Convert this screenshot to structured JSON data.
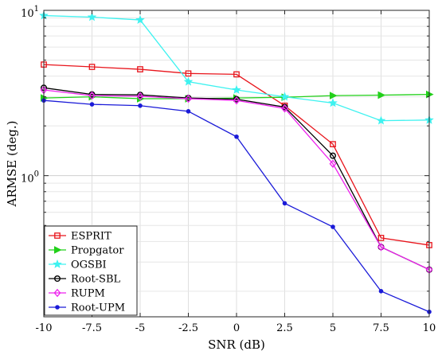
{
  "chart_data": {
    "type": "line",
    "xlabel": "SNR (dB)",
    "ylabel": "ARMSE (deg.)",
    "yscale": "log",
    "xlim": [
      -10,
      10
    ],
    "ylim": [
      0.14,
      10
    ],
    "grid": true,
    "legend_position": "bottom-left",
    "x_ticks": [
      -10,
      -7.5,
      -5,
      -2.5,
      0,
      2.5,
      5,
      7.5,
      10
    ],
    "x_tick_labels": [
      "-10",
      "-7.5",
      "-5",
      "-2.5",
      "0",
      "2.5",
      "5",
      "7.5",
      "10"
    ],
    "y_major_ticks": [
      {
        "value": 1,
        "base": "10",
        "exp": "0"
      },
      {
        "value": 10,
        "base": "10",
        "exp": "1"
      }
    ],
    "y_minor_ticks": [
      0.2,
      0.3,
      0.4,
      0.5,
      0.6,
      0.7,
      0.8,
      0.9,
      2,
      3,
      4,
      5,
      6,
      7,
      8,
      9
    ],
    "x": [
      -10,
      -7.5,
      -5,
      -2.5,
      0,
      2.5,
      5,
      7.5,
      10
    ],
    "series": [
      {
        "name": "ESPRIT",
        "color": "#e8141b",
        "marker": "square",
        "values": [
          4.7,
          4.55,
          4.4,
          4.15,
          4.1,
          2.65,
          1.55,
          0.42,
          0.38
        ]
      },
      {
        "name": "Propgator",
        "color": "#22d01a",
        "marker": "triangle-right",
        "values": [
          2.95,
          3.0,
          2.92,
          2.92,
          2.95,
          2.98,
          3.05,
          3.07,
          3.1
        ]
      },
      {
        "name": "OGSBI",
        "color": "#3ff2f0",
        "marker": "star",
        "values": [
          9.3,
          9.1,
          8.75,
          3.7,
          3.3,
          3.0,
          2.75,
          2.15,
          2.17
        ]
      },
      {
        "name": "Root-SBL",
        "color": "#000000",
        "marker": "circle",
        "values": [
          3.4,
          3.1,
          3.08,
          2.95,
          2.9,
          2.6,
          1.32,
          0.37,
          0.27
        ]
      },
      {
        "name": "RUPM",
        "color": "#ee22ee",
        "marker": "diamond",
        "values": [
          3.3,
          3.05,
          3.02,
          2.92,
          2.85,
          2.55,
          1.18,
          0.37,
          0.27
        ]
      },
      {
        "name": "Root-UPM",
        "color": "#1a1ad8",
        "marker": "dot",
        "values": [
          2.85,
          2.7,
          2.65,
          2.45,
          1.72,
          0.68,
          0.49,
          0.2,
          0.15
        ]
      }
    ]
  }
}
